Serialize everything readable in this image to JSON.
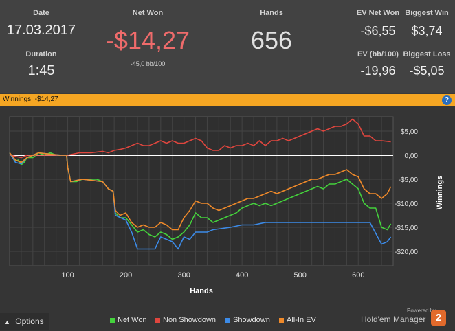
{
  "stats": {
    "date_label": "Date",
    "date_value": "17.03.2017",
    "duration_label": "Duration",
    "duration_value": "1:45",
    "netwon_label": "Net Won",
    "netwon_value": "-$14,27",
    "netwon_sub": "-45,0 bb/100",
    "hands_label": "Hands",
    "hands_value": "656",
    "ev_netwon_label": "EV Net Won",
    "ev_netwon_value": "-$6,55",
    "biggest_win_label": "Biggest Win",
    "biggest_win_value": "$3,74",
    "ev_bb_label": "EV (bb/100)",
    "ev_bb_value": "-19,96",
    "biggest_loss_label": "Biggest Loss",
    "biggest_loss_value": "-$5,05"
  },
  "winnings_bar": {
    "text": "Winnings: -$14,27",
    "help_icon": "?"
  },
  "colors": {
    "accent_bar": "#f5a623",
    "net_won": "#44d23c",
    "non_showdown": "#e0463e",
    "showdown": "#3c8be8",
    "all_in_ev": "#f08a2a",
    "zero_line": "#ffffff",
    "negative_value": "#ef6b6b"
  },
  "chart_data": {
    "type": "line",
    "xlabel": "Hands",
    "ylabel": "Winnings",
    "xlim": [
      0,
      660
    ],
    "ylim": [
      -23,
      8
    ],
    "x_ticks": [
      100,
      200,
      300,
      400,
      500,
      600
    ],
    "x_tick_labels": [
      "100",
      "200",
      "300",
      "400",
      "500",
      "600"
    ],
    "y_ticks": [
      5,
      0,
      -5,
      -10,
      -15,
      -20
    ],
    "y_tick_labels": [
      "$5,00",
      "0,00",
      "-$5,00",
      "-$10,00",
      "-$15,00",
      "-$20,00"
    ],
    "zero_line": 0,
    "grid": true,
    "legend_position": "bottom",
    "series": [
      {
        "name": "Net Won",
        "color": "#44d23c",
        "points": [
          [
            0,
            0.5
          ],
          [
            5,
            -0.5
          ],
          [
            10,
            -1.2
          ],
          [
            15,
            -1
          ],
          [
            20,
            -2
          ],
          [
            25,
            -1.5
          ],
          [
            30,
            -0.5
          ],
          [
            40,
            -0.5
          ],
          [
            50,
            0.5
          ],
          [
            60,
            0
          ],
          [
            70,
            0.5
          ],
          [
            80,
            0
          ],
          [
            90,
            0
          ],
          [
            98,
            0
          ],
          [
            100,
            -2.5
          ],
          [
            105,
            -5.5
          ],
          [
            115,
            -5.5
          ],
          [
            125,
            -5
          ],
          [
            135,
            -5
          ],
          [
            150,
            -5
          ],
          [
            160,
            -5.5
          ],
          [
            170,
            -7
          ],
          [
            178,
            -7.5
          ],
          [
            182,
            -12
          ],
          [
            190,
            -13
          ],
          [
            200,
            -13
          ],
          [
            210,
            -14.5
          ],
          [
            220,
            -16
          ],
          [
            230,
            -15.5
          ],
          [
            240,
            -16.5
          ],
          [
            250,
            -17
          ],
          [
            260,
            -16
          ],
          [
            270,
            -16.5
          ],
          [
            280,
            -17.5
          ],
          [
            290,
            -17
          ],
          [
            300,
            -16
          ],
          [
            310,
            -14.5
          ],
          [
            320,
            -12
          ],
          [
            330,
            -13
          ],
          [
            340,
            -13
          ],
          [
            350,
            -14
          ],
          [
            360,
            -13.5
          ],
          [
            370,
            -13
          ],
          [
            380,
            -12.5
          ],
          [
            390,
            -12
          ],
          [
            400,
            -11
          ],
          [
            410,
            -10.5
          ],
          [
            420,
            -10
          ],
          [
            430,
            -10.5
          ],
          [
            440,
            -10
          ],
          [
            450,
            -10.5
          ],
          [
            460,
            -10
          ],
          [
            470,
            -9.5
          ],
          [
            480,
            -9
          ],
          [
            490,
            -8.5
          ],
          [
            500,
            -8
          ],
          [
            510,
            -7.5
          ],
          [
            520,
            -7
          ],
          [
            530,
            -6.5
          ],
          [
            540,
            -7
          ],
          [
            550,
            -6
          ],
          [
            560,
            -6
          ],
          [
            570,
            -5.5
          ],
          [
            580,
            -5
          ],
          [
            590,
            -6
          ],
          [
            600,
            -7
          ],
          [
            610,
            -10
          ],
          [
            620,
            -11
          ],
          [
            630,
            -11
          ],
          [
            640,
            -15
          ],
          [
            650,
            -15.5
          ],
          [
            656,
            -14.27
          ]
        ]
      },
      {
        "name": "Non Showdown",
        "color": "#e0463e",
        "points": [
          [
            0,
            0
          ],
          [
            20,
            -0.5
          ],
          [
            30,
            0
          ],
          [
            60,
            0
          ],
          [
            90,
            0
          ],
          [
            100,
            0
          ],
          [
            120,
            0.5
          ],
          [
            140,
            0.5
          ],
          [
            160,
            0.8
          ],
          [
            170,
            0.5
          ],
          [
            180,
            1
          ],
          [
            190,
            1.2
          ],
          [
            200,
            1.5
          ],
          [
            210,
            2
          ],
          [
            220,
            2.5
          ],
          [
            230,
            2
          ],
          [
            240,
            2
          ],
          [
            250,
            2.5
          ],
          [
            260,
            3
          ],
          [
            270,
            2.5
          ],
          [
            280,
            3
          ],
          [
            290,
            2.5
          ],
          [
            300,
            2.5
          ],
          [
            310,
            3
          ],
          [
            320,
            3.5
          ],
          [
            330,
            3
          ],
          [
            340,
            1.5
          ],
          [
            350,
            1
          ],
          [
            360,
            1
          ],
          [
            370,
            2
          ],
          [
            380,
            1.5
          ],
          [
            390,
            2
          ],
          [
            400,
            2
          ],
          [
            410,
            2.5
          ],
          [
            420,
            2
          ],
          [
            430,
            3
          ],
          [
            440,
            2
          ],
          [
            450,
            3
          ],
          [
            460,
            3
          ],
          [
            470,
            3.5
          ],
          [
            480,
            3
          ],
          [
            490,
            3.5
          ],
          [
            500,
            4
          ],
          [
            510,
            4.5
          ],
          [
            520,
            5
          ],
          [
            530,
            5.5
          ],
          [
            540,
            5
          ],
          [
            550,
            5.5
          ],
          [
            560,
            6
          ],
          [
            570,
            6
          ],
          [
            580,
            6.5
          ],
          [
            590,
            7.5
          ],
          [
            600,
            6.5
          ],
          [
            610,
            4
          ],
          [
            620,
            4
          ],
          [
            630,
            3
          ],
          [
            640,
            3
          ],
          [
            656,
            2.8
          ]
        ]
      },
      {
        "name": "Showdown",
        "color": "#3c8be8",
        "points": [
          [
            0,
            0.5
          ],
          [
            10,
            -1.5
          ],
          [
            20,
            -1.8
          ],
          [
            30,
            -0.5
          ],
          [
            50,
            0.5
          ],
          [
            70,
            0.2
          ],
          [
            90,
            0
          ],
          [
            98,
            0
          ],
          [
            100,
            -2.5
          ],
          [
            105,
            -5.5
          ],
          [
            125,
            -5
          ],
          [
            160,
            -5.5
          ],
          [
            170,
            -7
          ],
          [
            178,
            -7.5
          ],
          [
            182,
            -12.5
          ],
          [
            200,
            -13.5
          ],
          [
            210,
            -16
          ],
          [
            220,
            -19.5
          ],
          [
            240,
            -19.5
          ],
          [
            250,
            -19.5
          ],
          [
            260,
            -17
          ],
          [
            280,
            -18
          ],
          [
            290,
            -19.5
          ],
          [
            300,
            -17
          ],
          [
            310,
            -17.5
          ],
          [
            320,
            -16
          ],
          [
            340,
            -16
          ],
          [
            350,
            -15.5
          ],
          [
            380,
            -15
          ],
          [
            400,
            -14.5
          ],
          [
            420,
            -14.5
          ],
          [
            440,
            -14
          ],
          [
            460,
            -14
          ],
          [
            500,
            -14
          ],
          [
            540,
            -14
          ],
          [
            590,
            -14
          ],
          [
            600,
            -14
          ],
          [
            620,
            -14
          ],
          [
            640,
            -18.5
          ],
          [
            650,
            -18
          ],
          [
            656,
            -17
          ]
        ]
      },
      {
        "name": "All-In EV",
        "color": "#f08a2a",
        "points": [
          [
            0,
            0.5
          ],
          [
            10,
            -1
          ],
          [
            20,
            -1.5
          ],
          [
            30,
            -0.5
          ],
          [
            50,
            0.5
          ],
          [
            70,
            0.2
          ],
          [
            90,
            0
          ],
          [
            98,
            0
          ],
          [
            100,
            -2.5
          ],
          [
            105,
            -5.5
          ],
          [
            125,
            -5
          ],
          [
            160,
            -5.5
          ],
          [
            170,
            -7
          ],
          [
            178,
            -7.5
          ],
          [
            182,
            -11.5
          ],
          [
            190,
            -12.5
          ],
          [
            200,
            -12
          ],
          [
            210,
            -14
          ],
          [
            220,
            -15
          ],
          [
            230,
            -14.5
          ],
          [
            240,
            -15
          ],
          [
            250,
            -15
          ],
          [
            260,
            -14
          ],
          [
            270,
            -14.5
          ],
          [
            280,
            -15.5
          ],
          [
            290,
            -15.5
          ],
          [
            300,
            -13
          ],
          [
            310,
            -11.5
          ],
          [
            320,
            -9.5
          ],
          [
            330,
            -10
          ],
          [
            340,
            -10
          ],
          [
            350,
            -11
          ],
          [
            360,
            -11.5
          ],
          [
            370,
            -11
          ],
          [
            380,
            -10.5
          ],
          [
            390,
            -10
          ],
          [
            400,
            -9.5
          ],
          [
            410,
            -9
          ],
          [
            420,
            -9
          ],
          [
            430,
            -8.5
          ],
          [
            440,
            -8
          ],
          [
            450,
            -7.5
          ],
          [
            460,
            -8
          ],
          [
            470,
            -7.5
          ],
          [
            480,
            -7
          ],
          [
            490,
            -6.5
          ],
          [
            500,
            -6
          ],
          [
            510,
            -5.5
          ],
          [
            520,
            -5
          ],
          [
            530,
            -5
          ],
          [
            540,
            -4.5
          ],
          [
            550,
            -4
          ],
          [
            560,
            -4
          ],
          [
            570,
            -3.5
          ],
          [
            580,
            -3
          ],
          [
            590,
            -4
          ],
          [
            600,
            -4.5
          ],
          [
            610,
            -7
          ],
          [
            620,
            -8
          ],
          [
            630,
            -8
          ],
          [
            640,
            -9
          ],
          [
            650,
            -8
          ],
          [
            656,
            -6.55
          ]
        ]
      }
    ]
  },
  "options": {
    "label": "Options",
    "chevron_icon": "chevron-up-icon"
  },
  "legend": {
    "items": [
      {
        "label": "Net Won",
        "color": "#44d23c"
      },
      {
        "label": "Non Showdown",
        "color": "#e0463e"
      },
      {
        "label": "Showdown",
        "color": "#3c8be8"
      },
      {
        "label": "All-In EV",
        "color": "#f08a2a"
      }
    ]
  },
  "branding": {
    "powered": "Powered by",
    "name": "Hold'em Manager",
    "badge": "2"
  }
}
